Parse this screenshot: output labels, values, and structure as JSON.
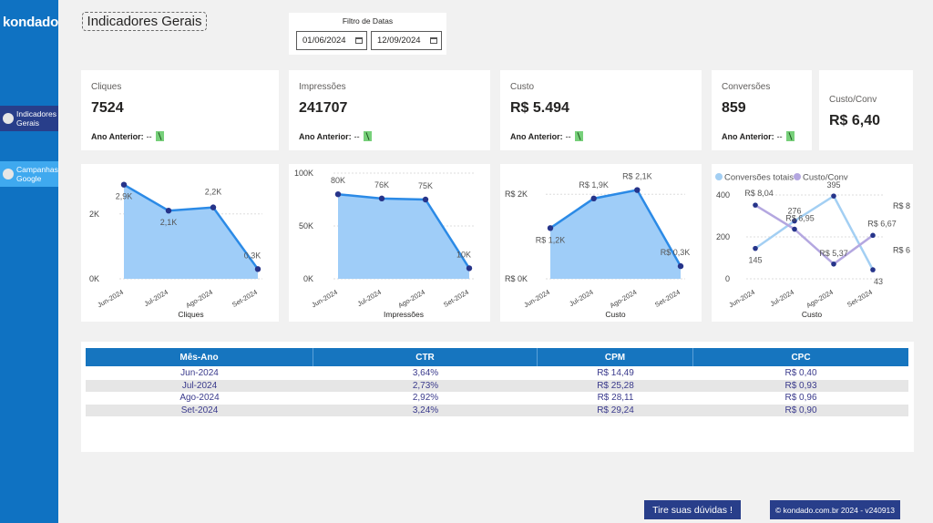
{
  "sidebar": {
    "brand": "kondado",
    "items": [
      {
        "label": "Indicadores Gerais",
        "active": true
      },
      {
        "label": "Campanhas Google",
        "active": false
      }
    ]
  },
  "header": {
    "title": "Indicadores Gerais"
  },
  "date_filter": {
    "label": "Filtro de Datas",
    "start": "01/06/2024",
    "end": "12/09/2024"
  },
  "kpis": [
    {
      "label": "Cliques",
      "value": "7524",
      "prev_label": "Ano Anterior:",
      "prev_value": "--"
    },
    {
      "label": "Impressões",
      "value": "241707",
      "prev_label": "Ano Anterior:",
      "prev_value": "--"
    },
    {
      "label": "Custo",
      "value": "R$ 5.494",
      "prev_label": "Ano Anterior:",
      "prev_value": "--"
    },
    {
      "label": "Conversões",
      "value": "859",
      "prev_label": "Ano Anterior:",
      "prev_value": "--"
    },
    {
      "label": "Custo/Conv",
      "value": "R$ 6,40"
    }
  ],
  "chart_data": [
    {
      "type": "area",
      "xlabel": "Cliques",
      "categories": [
        "Jun-2024",
        "Jul-2024",
        "Ago-2024",
        "Set-2024"
      ],
      "values": [
        2900,
        2100,
        2200,
        300
      ],
      "data_labels": [
        "2,9K",
        "2,1K",
        "2,2K",
        "0,3K"
      ],
      "yticks": [
        "0K",
        "2K"
      ],
      "ylim": [
        0,
        3200
      ]
    },
    {
      "type": "area",
      "xlabel": "Impressões",
      "categories": [
        "Jun-2024",
        "Jul-2024",
        "Ago-2024",
        "Set-2024"
      ],
      "values": [
        80000,
        76000,
        75000,
        10000
      ],
      "data_labels": [
        "80K",
        "76K",
        "75K",
        "10K"
      ],
      "yticks": [
        "0K",
        "50K",
        "100K"
      ],
      "ylim": [
        0,
        100000
      ]
    },
    {
      "type": "area",
      "xlabel": "Custo",
      "categories": [
        "Jun-2024",
        "Jul-2024",
        "Ago-2024",
        "Set-2024"
      ],
      "values": [
        1200,
        1900,
        2100,
        300
      ],
      "data_labels": [
        "R$ 1,2K",
        "R$ 1,9K",
        "R$ 2,1K",
        "R$ 0,3K"
      ],
      "yticks": [
        "R$ 0K",
        "R$ 2K"
      ],
      "ylim": [
        0,
        2500
      ]
    },
    {
      "type": "line",
      "xlabel": "Custo",
      "categories": [
        "Jun-2024",
        "Jul-2024",
        "Ago-2024",
        "Set-2024"
      ],
      "legend": [
        "Conversões totais",
        "Custo/Conv"
      ],
      "series": [
        {
          "name": "Conversões totais",
          "values": [
            145,
            276,
            395,
            43
          ],
          "data_labels": [
            "145",
            "276",
            "395",
            "43"
          ],
          "color": "#a3cff3"
        },
        {
          "name": "Custo/Conv",
          "values": [
            8.04,
            6.95,
            5.37,
            6.67
          ],
          "data_labels": [
            "R$ 8,04",
            "R$ 6,95",
            "R$ 5,37",
            "R$ 6,67"
          ],
          "color": "#b4a7e0"
        }
      ],
      "yticks_left": [
        "0",
        "200",
        "400"
      ],
      "ylim_left": [
        0,
        400
      ],
      "yticks_right": [
        "R$ 6",
        "R$ 8"
      ]
    }
  ],
  "table": {
    "headers": [
      "Mês-Ano",
      "CTR",
      "CPM",
      "CPC"
    ],
    "rows": [
      [
        "Jun-2024",
        "3,64%",
        "R$ 14,49",
        "R$ 0,40"
      ],
      [
        "Jul-2024",
        "2,73%",
        "R$ 25,28",
        "R$ 0,93"
      ],
      [
        "Ago-2024",
        "2,92%",
        "R$ 28,11",
        "R$ 0,96"
      ],
      [
        "Set-2024",
        "3,24%",
        "R$ 29,24",
        "R$ 0,90"
      ]
    ]
  },
  "footer": {
    "help_label": "Tire suas dúvidas !",
    "copyright": "© kondado.com.br 2024 - v240913"
  },
  "colors": {
    "sidebar": "#0f72c2",
    "accent_dark": "#283e8a",
    "area_fill": "#9fcdf8",
    "line": "#2b8ae6",
    "point": "#26348a"
  }
}
